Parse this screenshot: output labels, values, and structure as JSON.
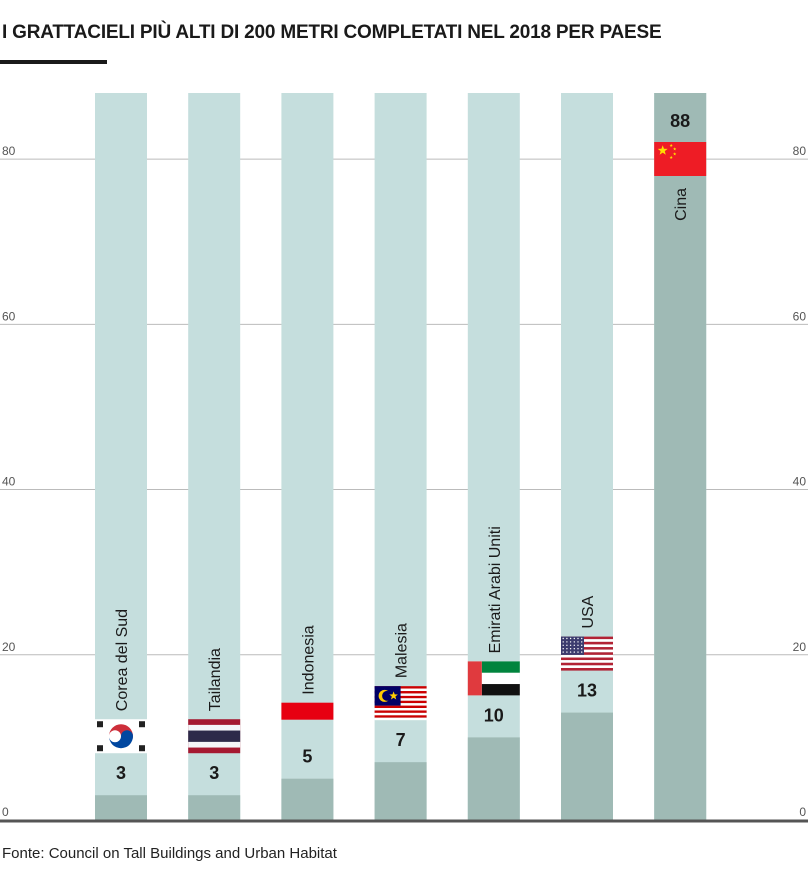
{
  "title": "I GRATTACIELI PIÙ ALTI DI 200 METRI COMPLETATI NEL 2018 PER PAESE",
  "source": "Fonte: Council on Tall Buildings and Urban Habitat",
  "colors": {
    "bar_background": "#c5dedd",
    "bar_value": "#9fbab5",
    "gridline": "#bbbbbb",
    "axis": "#555555",
    "text": "#1a1a1a",
    "tick": "#555555"
  },
  "chart_data": {
    "type": "bar",
    "title": "I GRATTACIELI PIÙ ALTI DI 200 METRI COMPLETATI NEL 2018 PER PAESE",
    "categories": [
      "Corea del Sud",
      "Tailandia",
      "Indonesia",
      "Malesia",
      "Emirati Arabi Uniti",
      "USA",
      "Cina"
    ],
    "values": [
      3,
      3,
      5,
      7,
      10,
      13,
      88
    ],
    "flags": [
      "south-korea-flag",
      "thailand-flag",
      "indonesia-flag",
      "malaysia-flag",
      "uae-flag",
      "usa-flag",
      "china-flag"
    ],
    "ylim": [
      0,
      88
    ],
    "yticks": [
      0,
      20,
      40,
      60,
      80
    ],
    "ytick_labels": [
      "0",
      "20",
      "40",
      "60",
      "80"
    ],
    "grid": true,
    "y_axis_both_sides": true
  }
}
